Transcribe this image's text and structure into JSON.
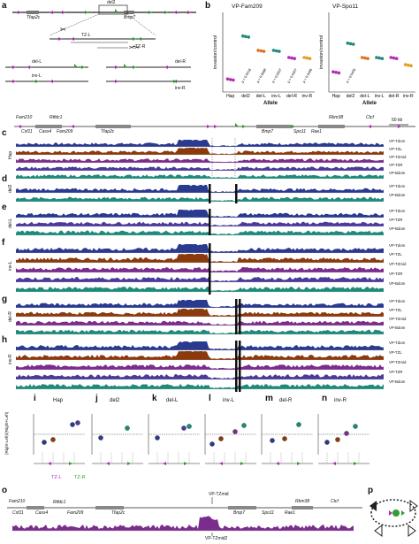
{
  "panel_labels": [
    "a",
    "b",
    "c",
    "d",
    "e",
    "f",
    "g",
    "h",
    "i",
    "j",
    "k",
    "l",
    "m",
    "n",
    "o",
    "p"
  ],
  "panel_a": {
    "genes": [
      "Tfap2c",
      "Bmp7"
    ],
    "deletion": "del2",
    "tz_left": "TZ-L",
    "tz_right": "+TZ-R",
    "alleles": [
      "del-L",
      "del-R",
      "inv-L",
      "inv-R"
    ]
  },
  "panel_b": {
    "ylabel": "invasion/control",
    "xlabel": "Allele",
    "charts": [
      {
        "title": "VP-Fam209",
        "categories": [
          "Hap",
          "del2",
          "del-L",
          "inv-L",
          "del-R",
          "inv-R"
        ],
        "annotations": [
          "p = 0.0416",
          "p = 0.0068",
          "p = 0.0307",
          "p = 0.0307",
          "p = 0.0495"
        ]
      },
      {
        "title": "VP-Spo11",
        "categories": [
          "Hap",
          "del2",
          "del-L",
          "inv-L",
          "del-R",
          "inv-R"
        ],
        "annotations": [
          "p = 0.0435"
        ]
      }
    ]
  },
  "chart_data": [
    {
      "type": "scatter",
      "title": "VP-Fam209",
      "xlabel": "Allele",
      "ylabel": "invasion/control",
      "categories": [
        "Hap",
        "del2",
        "del-L",
        "inv-L",
        "del-R",
        "inv-R"
      ],
      "series": [
        {
          "name": "VP-Fam209",
          "values": [
            0.1,
            0.7,
            0.5,
            0.5,
            0.4,
            0.4
          ]
        }
      ]
    },
    {
      "type": "scatter",
      "title": "VP-Spo11",
      "xlabel": "Allele",
      "ylabel": "invasion/control",
      "categories": [
        "Hap",
        "del2",
        "del-L",
        "inv-L",
        "del-R",
        "inv-R"
      ],
      "series": [
        {
          "name": "VP-Spo11",
          "values": [
            0.2,
            0.6,
            0.4,
            0.4,
            0.4,
            0.3
          ]
        }
      ]
    }
  ],
  "scale_bar": "50 kb",
  "genome_genes": {
    "top": [
      "Fam210",
      "Rtfdc1",
      "Rbm38",
      "Ctcf"
    ],
    "bottom": [
      "Csf11",
      "Cass4",
      "Fam209",
      "Tfap2c",
      "Bmp7",
      "Spo11",
      "Rae1"
    ]
  },
  "tracks": {
    "c": {
      "allele": "Hap",
      "names": [
        "VP-Tdom",
        "VP-TZL",
        "VP-TZmid",
        "VP-TZR",
        "VP-Bdom"
      ]
    },
    "d": {
      "allele": "del2",
      "names": [
        "VP-Tdom",
        "VP-Bdom"
      ]
    },
    "e": {
      "allele": "del-L",
      "names": [
        "VP-Tdom",
        "VP-TZR",
        "VP-Bdom"
      ]
    },
    "f": {
      "allele": "inv-L",
      "names": [
        "VP-Tdom",
        "VP-TZL",
        "VP-TZmid",
        "VP-TZR",
        "VP-Bdom"
      ]
    },
    "g": {
      "allele": "del-R",
      "names": [
        "VP-Tdom",
        "VP-TZL",
        "VP-TZmid",
        "VP-Bdom"
      ]
    },
    "h": {
      "allele": "inv-R",
      "names": [
        "VP-Tdom",
        "VP-TZL",
        "VP-TZmid",
        "VP-TZR",
        "VP-Bdom"
      ]
    }
  },
  "bottom_panels": {
    "ylabel": "(Right-Left)/(Right+Left)",
    "alleles": [
      "Hap",
      "del2",
      "del-L",
      "inv-L",
      "del-R",
      "inv-R"
    ],
    "tz_left": "TZ-L",
    "tz_right": "TZ-R"
  },
  "panel_o": {
    "vp1": "VP-TZmid",
    "vp2": "VP-TZmid2",
    "genes_top": [
      "Fam210",
      "Rtfdc1",
      "Rbm38",
      "Ctcf"
    ],
    "genes_bottom": [
      "Csf11",
      "Cass4",
      "Fam209",
      "Tfap2c",
      "Bmp7",
      "Spo11",
      "Rae1"
    ]
  },
  "colors": {
    "tdom": "#2a3a8f",
    "tzl": "#8b3a0e",
    "tzmid": "#7b2d8e",
    "tzr": "#4b3a9a",
    "bdom": "#1f8a7a",
    "green": "#2f9e2f",
    "magenta": "#b32bb3"
  }
}
